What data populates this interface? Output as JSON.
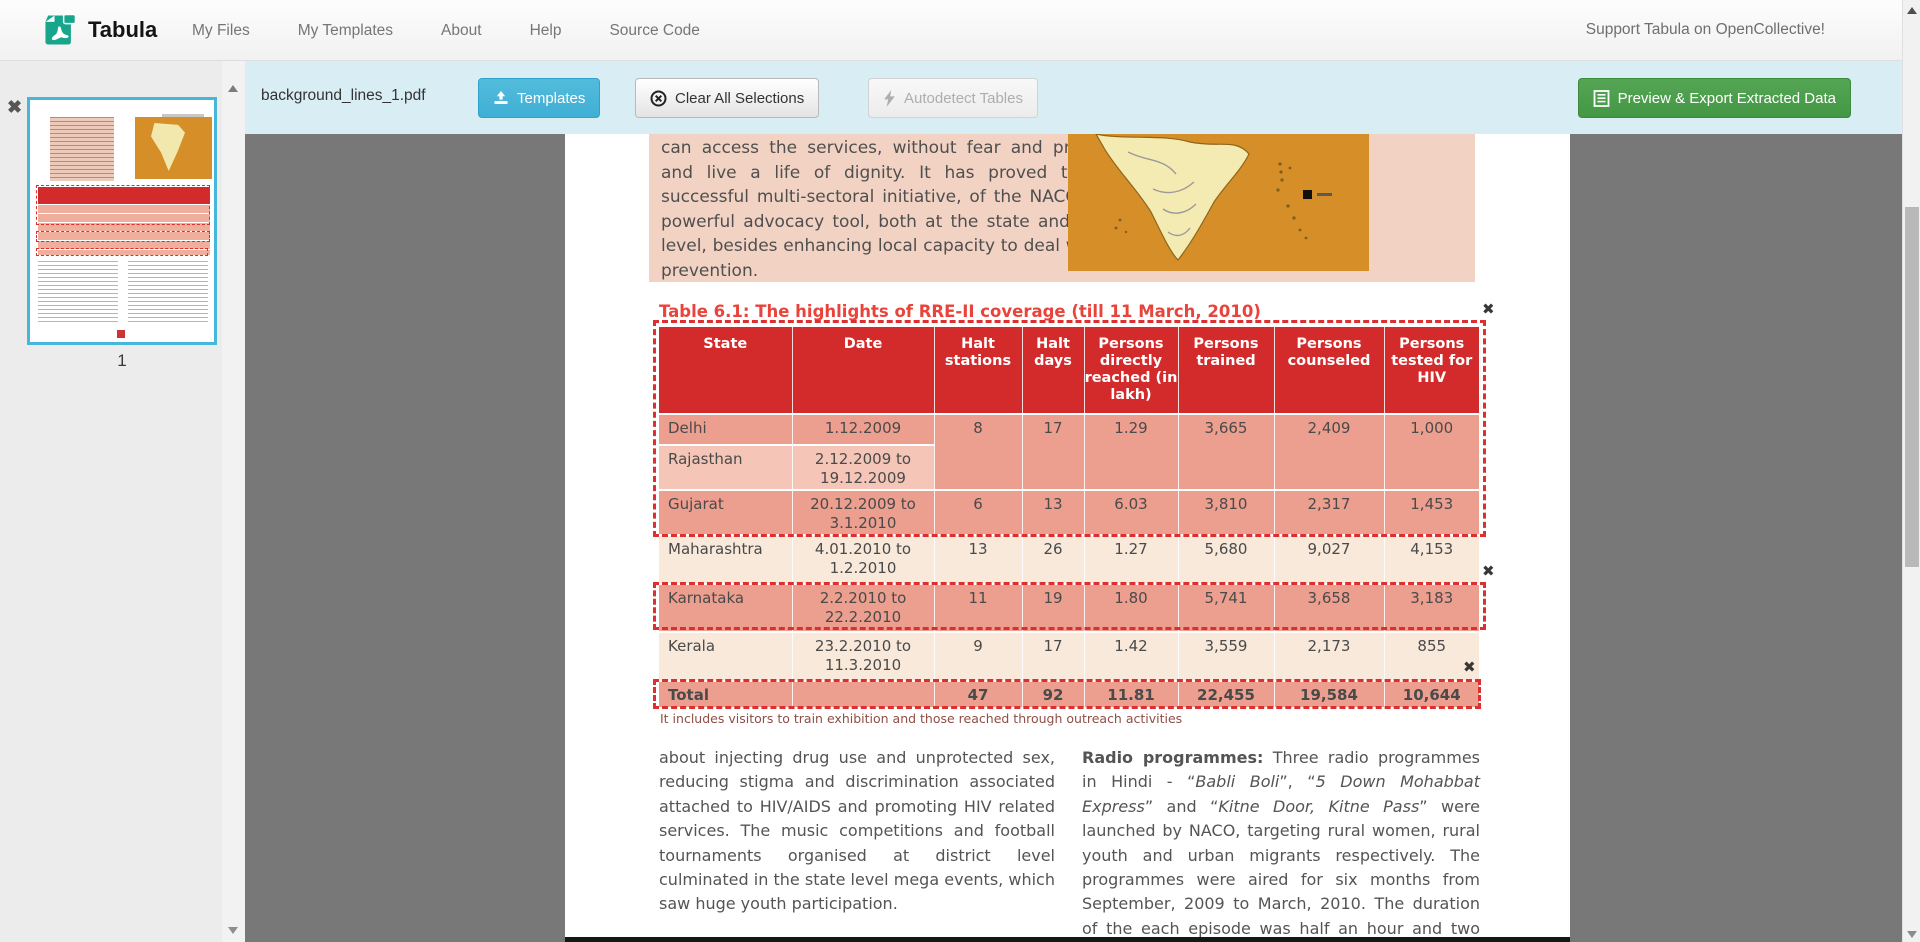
{
  "navbar": {
    "brand": "Tabula",
    "links": [
      "My Files",
      "My Templates",
      "About",
      "Help",
      "Source Code"
    ],
    "support_link": "Support Tabula on OpenCollective!"
  },
  "toolbar": {
    "filename": "background_lines_1.pdf",
    "templates_label": "Templates",
    "clear_label": "Clear All Selections",
    "autodetect_label": "Autodetect Tables",
    "export_label": "Preview & Export Extracted Data"
  },
  "sidebar": {
    "page_number": "1",
    "close_glyph": "✖"
  },
  "document": {
    "intro_paragraph": "can access the services, without fear and prejudice, and live a life of dignity. It has proved to be a successful multi-sectoral initiative, of the NACO and a powerful advocacy tool, both at the state and district level, besides enhancing local capacity to deal with HIV prevention.",
    "table_title": "Table 6.1: The highlights of RRE-II coverage (till 11 March, 2010)",
    "table": {
      "headers": [
        "State",
        "Date",
        "Halt stations",
        "Halt days",
        "Persons directly reached (in lakh)",
        "Persons trained",
        "Persons counseled",
        "Persons tested for HIV"
      ],
      "rows": [
        [
          "Delhi",
          "1.12.2009",
          "8",
          "17",
          "1.29",
          "3,665",
          "2,409",
          "1,000"
        ],
        [
          "Rajasthan",
          "2.12.2009 to 19.12.2009",
          "",
          "",
          "",
          "",
          "",
          ""
        ],
        [
          "Gujarat",
          "20.12.2009 to 3.1.2010",
          "6",
          "13",
          "6.03",
          "3,810",
          "2,317",
          "1,453"
        ],
        [
          "Maharashtra",
          "4.01.2010 to 1.2.2010",
          "13",
          "26",
          "1.27",
          "5,680",
          "9,027",
          "4,153"
        ],
        [
          "Karnataka",
          "2.2.2010 to 22.2.2010",
          "11",
          "19",
          "1.80",
          "5,741",
          "3,658",
          "3,183"
        ],
        [
          "Kerala",
          "23.2.2010 to 11.3.2010",
          "9",
          "17",
          "1.42",
          "3,559",
          "2,173",
          "855"
        ],
        [
          "Total",
          "",
          "47",
          "92",
          "11.81",
          "22,455",
          "19,584",
          "10,644"
        ]
      ]
    },
    "footnote": "It includes visitors to train exhibition and those reached through outreach activities",
    "left_column": "about injecting drug use and unprotected sex, reducing stigma and discrimination associated attached to HIV/AIDS and promoting HIV related services. The music competitions and football tournaments organised at district level culminated in the state level mega events, which saw huge youth participation.",
    "right_column_segments": [
      {
        "t": "Radio programmes:",
        "b": 1
      },
      {
        "t": " Three radio programmes in Hindi - “"
      },
      {
        "t": "Babli Boli",
        "i": 1
      },
      {
        "t": "”, “"
      },
      {
        "t": "5 Down Mohabbat Express",
        "i": 1
      },
      {
        "t": "” and “"
      },
      {
        "t": "Kitne Door, Kitne Pass",
        "i": 1
      },
      {
        "t": "” were launched by NACO, targeting rural women, rural youth and urban migrants respectively. The programmes were aired for six months from September, 2009 to March, 2010. The duration of the each episode was half an hour and two episodes"
      }
    ],
    "selection_close_glyph": "✖"
  },
  "colors": {
    "toolbar_bg": "#d9edf5",
    "templates_button": "#3fafd4",
    "export_button": "#449744",
    "table_header_red": "#d32b2b",
    "selection_red": "#dd2f2f",
    "selected_row": "#ec9e8f",
    "light_row": "#f9e9da",
    "rajasthan_row": "#f5c5b7",
    "intro_block_pink": "#f2d3c3",
    "map_orange": "#d68f28",
    "thumbnail_border": "#46b6da",
    "main_bg": "#787878",
    "title_red": "#e8443b"
  }
}
